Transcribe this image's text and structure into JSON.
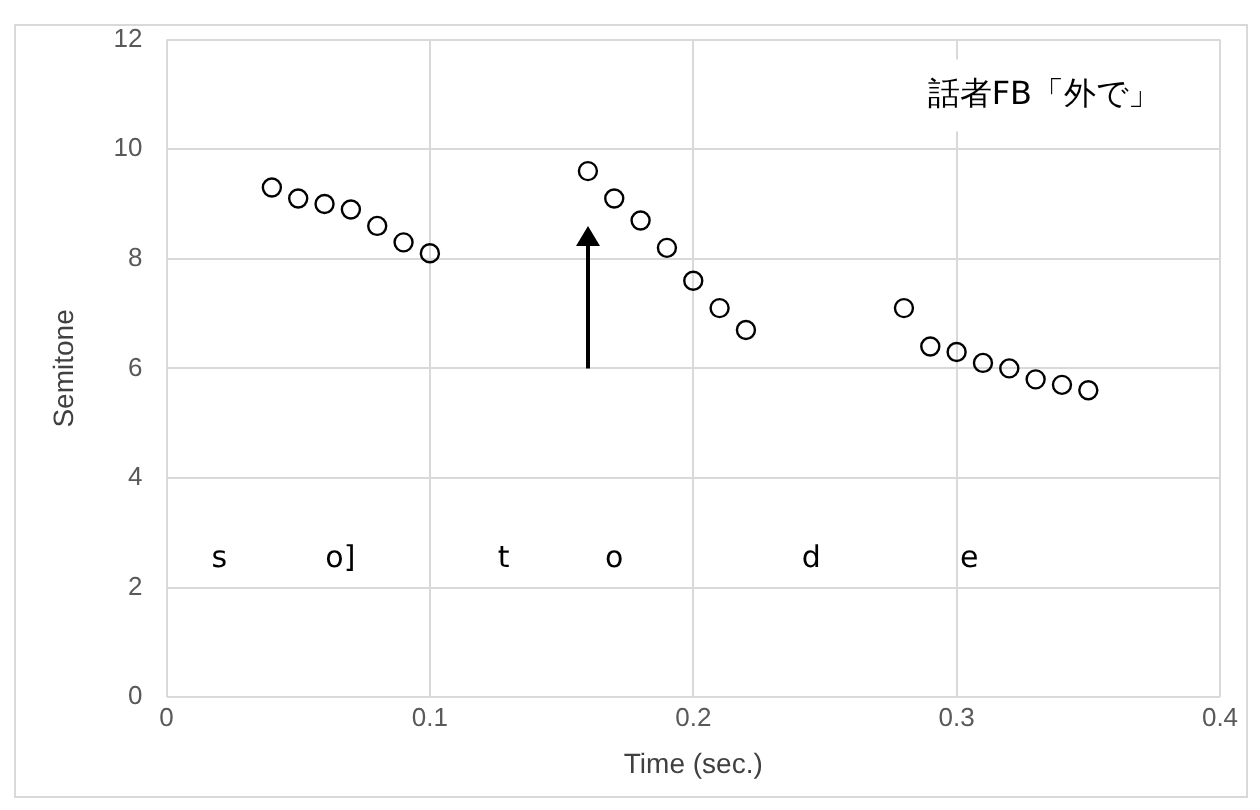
{
  "chart_data": {
    "type": "scatter",
    "xlabel": "Time (sec.)",
    "ylabel": "Semitone",
    "marker": "circle",
    "grid": true,
    "legend": false,
    "xlim": [
      0,
      0.4
    ],
    "xticks": [
      0,
      0.1,
      0.2,
      0.3,
      0.4
    ],
    "ylim": [
      0,
      12
    ],
    "yticks": [
      0,
      2,
      4,
      6,
      8,
      10,
      12
    ],
    "series": [
      {
        "color": "#000000",
        "x": [
          0.04,
          0.05,
          0.06,
          0.07,
          0.08,
          0.09,
          0.1,
          0.16,
          0.17,
          0.18,
          0.19,
          0.2,
          0.21,
          0.22,
          0.28,
          0.29,
          0.3,
          0.31,
          0.32,
          0.33,
          0.34,
          0.35
        ],
        "values": [
          9.3,
          9.1,
          9.0,
          8.9,
          8.6,
          8.3,
          8.1,
          9.6,
          9.1,
          8.7,
          8.2,
          7.6,
          7.1,
          6.7,
          7.1,
          6.4,
          6.3,
          6.1,
          6.0,
          5.8,
          5.7,
          5.6
        ]
      }
    ],
    "annotations": [
      "話者FB「外で」",
      "s",
      "o]",
      "t",
      "o",
      "d",
      "e"
    ]
  }
}
